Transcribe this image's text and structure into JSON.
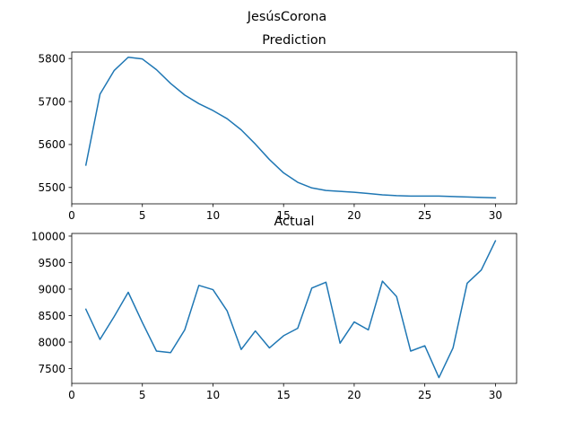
{
  "figure": {
    "suptitle": "JesúsCorona"
  },
  "colors": {
    "line": "#1f77b4",
    "axes": "#000000",
    "background": "#ffffff"
  },
  "chart_data": [
    {
      "type": "line",
      "title": "Prediction",
      "xlabel": "",
      "ylabel": "",
      "xlim": [
        0,
        31.5
      ],
      "ylim": [
        5462,
        5815
      ],
      "xticks": [
        0,
        5,
        10,
        15,
        20,
        25,
        30
      ],
      "xtick_labels": [
        "0",
        "5",
        "10",
        "15",
        "20",
        "25",
        "30"
      ],
      "yticks": [
        5500,
        5600,
        5700,
        5800
      ],
      "ytick_labels": [
        "5500",
        "5600",
        "5700",
        "5800"
      ],
      "grid": false,
      "legend": "none",
      "x": [
        1,
        2,
        3,
        4,
        5,
        6,
        7,
        8,
        9,
        10,
        11,
        12,
        13,
        14,
        15,
        16,
        17,
        18,
        19,
        20,
        21,
        22,
        23,
        24,
        25,
        26,
        27,
        28,
        29,
        30
      ],
      "series": [
        {
          "values": [
            5552,
            5717,
            5772,
            5803,
            5799,
            5774,
            5742,
            5715,
            5695,
            5679,
            5660,
            5634,
            5601,
            5565,
            5534,
            5512,
            5499,
            5493,
            5491,
            5489,
            5486,
            5483,
            5481,
            5480,
            5480,
            5480,
            5479,
            5478,
            5477,
            5476
          ]
        }
      ]
    },
    {
      "type": "line",
      "title": "Actual",
      "xlabel": "",
      "ylabel": "",
      "xlim": [
        0,
        31.5
      ],
      "ylim": [
        7220,
        10050
      ],
      "xticks": [
        0,
        5,
        10,
        15,
        20,
        25,
        30
      ],
      "xtick_labels": [
        "0",
        "5",
        "10",
        "15",
        "20",
        "25",
        "30"
      ],
      "yticks": [
        7500,
        8000,
        8500,
        9000,
        9500,
        10000
      ],
      "ytick_labels": [
        "7500",
        "8000",
        "8500",
        "9000",
        "9500",
        "10000"
      ],
      "grid": false,
      "legend": "none",
      "x": [
        1,
        2,
        3,
        4,
        5,
        6,
        7,
        8,
        9,
        10,
        11,
        12,
        13,
        14,
        15,
        16,
        17,
        18,
        19,
        20,
        21,
        22,
        23,
        24,
        25,
        26,
        27,
        28,
        29,
        30
      ],
      "series": [
        {
          "values": [
            8620,
            8050,
            8480,
            8940,
            8370,
            7830,
            7800,
            8230,
            9070,
            8990,
            8590,
            7860,
            8210,
            7890,
            8120,
            8260,
            9020,
            9130,
            7980,
            8380,
            8230,
            9150,
            8860,
            7830,
            7930,
            7330,
            7890,
            9110,
            9360,
            9910
          ]
        }
      ]
    }
  ]
}
